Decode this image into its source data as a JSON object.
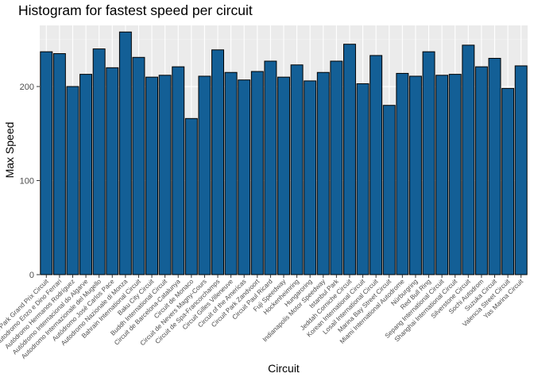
{
  "chart_data": {
    "type": "bar",
    "title": "Histogram for fastest speed per circuit",
    "xlabel": "Circuit",
    "ylabel": "Max Speed",
    "ylim": [
      0,
      265
    ],
    "yticks": [
      0,
      100,
      200
    ],
    "grid": true,
    "legend": "none",
    "categories": [
      "Albert Park Grand Prix Circuit",
      "Autodromo Enzo e Dino Ferrari",
      "Autódromo Hermanos Rodríguez",
      "Autódromo Internacional do Algarve",
      "Autodromo Internazionale del Mugello",
      "Autódromo José Carlos Pace",
      "Autodromo Nazionale di Monza",
      "Bahrain International Circuit",
      "Baku City Circuit",
      "Buddh International Circuit",
      "Circuit de Barcelona-Catalunya",
      "Circuit de Monaco",
      "Circuit de Nevers Magny-Cours",
      "Circuit de Spa-Francorchamps",
      "Circuit Gilles Villeneuve",
      "Circuit of the Americas",
      "Circuit Park Zandvoort",
      "Circuit Paul Ricard",
      "Fuji Speedway",
      "Hockenheimring",
      "Hungaroring",
      "Indianapolis Motor Speedway",
      "Istanbul Park",
      "Jeddah Corniche Circuit",
      "Korean International Circuit",
      "Losail International Circuit",
      "Marina Bay Street Circuit",
      "Miami International Autodrome",
      "Nürburgring",
      "Red Bull Ring",
      "Sepang International Circuit",
      "Shanghai International Circuit",
      "Silverstone Circuit",
      "Sochi Autodrom",
      "Suzuka Circuit",
      "Valencia Street Circuit",
      "Yas Marina Circuit"
    ],
    "values": [
      237,
      235,
      200,
      213,
      240,
      220,
      258,
      231,
      210,
      212,
      221,
      166,
      211,
      239,
      215,
      207,
      216,
      227,
      210,
      223,
      206,
      215,
      227,
      245,
      203,
      233,
      180,
      214,
      211,
      237,
      212,
      213,
      244,
      221,
      230,
      198,
      222
    ]
  },
  "colors": {
    "bar_fill": "#135f96",
    "bar_outline": "#000000",
    "panel_background": "#ebebeb",
    "grid_major": "#ffffff",
    "grid_minor": "#f5f5f5"
  }
}
